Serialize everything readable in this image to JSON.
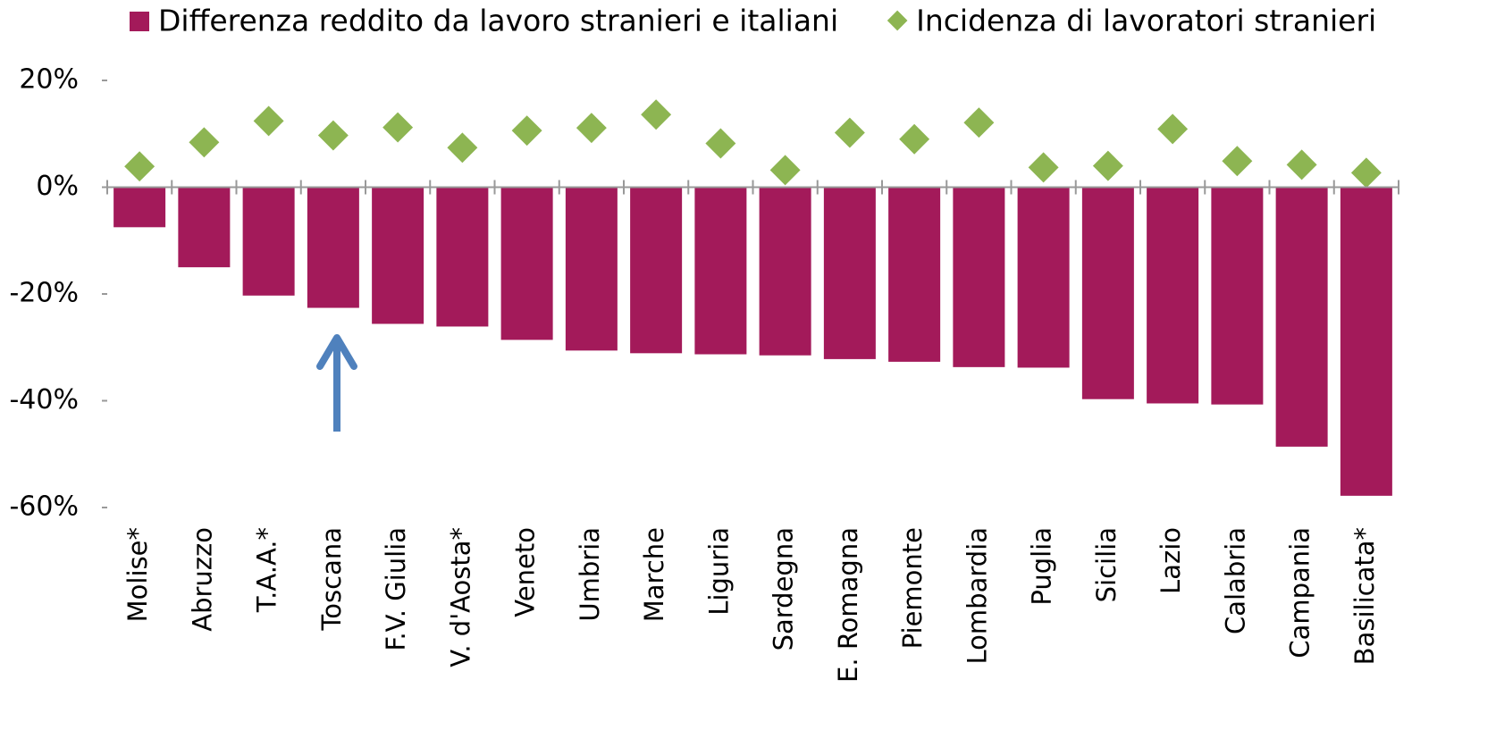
{
  "chart_data": {
    "type": "bar",
    "categories": [
      "Molise*",
      "Abruzzo",
      "T.A.A.*",
      "Toscana",
      "F.V. Giulia",
      "V. d'Aosta*",
      "Veneto",
      "Umbria",
      "Marche",
      "Liguria",
      "Sardegna",
      "E. Romagna",
      "Piemonte",
      "Lombardia",
      "Puglia",
      "Sicilia",
      "Lazio",
      "Calabria",
      "Campania",
      "Basilicata*"
    ],
    "series": [
      {
        "name": "Differenza reddito da lavoro stranieri e italiani",
        "type": "bar",
        "color": "#a31a5a",
        "values": [
          -7.5,
          -15,
          -20.3,
          -22.6,
          -25.6,
          -26.1,
          -28.6,
          -30.6,
          -31.1,
          -31.3,
          -31.5,
          -32.2,
          -32.7,
          -33.7,
          -33.8,
          -39.7,
          -40.5,
          -40.7,
          -48.6,
          -57.8
        ]
      },
      {
        "name": "Incidenza di lavoratori stranieri",
        "type": "scatter",
        "color": "#8db552",
        "values": [
          3.9,
          8.4,
          12.4,
          9.7,
          11.2,
          7.4,
          10.6,
          11.1,
          13.6,
          8.2,
          3.2,
          10.2,
          9.0,
          12.1,
          3.7,
          4.0,
          10.9,
          4.9,
          4.2,
          2.7
        ]
      }
    ],
    "ylim": [
      -60,
      20
    ],
    "yticks": [
      {
        "value": -60,
        "label": "-60%"
      },
      {
        "value": -40,
        "label": "-40%"
      },
      {
        "value": -20,
        "label": "-20%"
      },
      {
        "value": 0,
        "label": "0%"
      },
      {
        "value": 20,
        "label": "20%"
      }
    ],
    "legend": "top"
  }
}
